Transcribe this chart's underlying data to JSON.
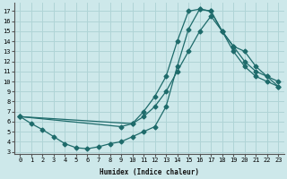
{
  "xlabel": "Humidex (Indice chaleur)",
  "bg_color": "#cde8ea",
  "grid_color": "#b0d4d6",
  "line_color": "#1e6b6b",
  "xlim": [
    -0.5,
    23.5
  ],
  "ylim": [
    2.8,
    17.8
  ],
  "xticks": [
    0,
    1,
    2,
    3,
    4,
    5,
    6,
    7,
    8,
    9,
    10,
    11,
    12,
    13,
    14,
    15,
    16,
    17,
    18,
    19,
    20,
    21,
    22,
    23
  ],
  "yticks": [
    3,
    4,
    5,
    6,
    7,
    8,
    9,
    10,
    11,
    12,
    13,
    14,
    15,
    16,
    17
  ],
  "line1_x": [
    0,
    1,
    2,
    3,
    4,
    5,
    6,
    7,
    8,
    9,
    10,
    11,
    12,
    13,
    14,
    15,
    16,
    17,
    18,
    19,
    20,
    21,
    22,
    23
  ],
  "line1_y": [
    6.5,
    5.8,
    5.2,
    4.5,
    3.8,
    3.4,
    3.3,
    3.5,
    3.8,
    4.0,
    4.5,
    5.0,
    5.5,
    7.5,
    11.5,
    15.2,
    17.2,
    17.0,
    15.0,
    13.0,
    11.5,
    10.5,
    10.0,
    9.5
  ],
  "line2_x": [
    0,
    10,
    11,
    12,
    13,
    14,
    15,
    16,
    17,
    18,
    19,
    20,
    21,
    22,
    23
  ],
  "line2_y": [
    6.5,
    5.8,
    7.0,
    8.5,
    10.5,
    14.0,
    17.0,
    17.2,
    17.0,
    15.0,
    13.5,
    13.0,
    11.5,
    10.5,
    10.0
  ],
  "line3_x": [
    0,
    9,
    10,
    11,
    12,
    13,
    14,
    15,
    16,
    17,
    18,
    19,
    20,
    21,
    22,
    23
  ],
  "line3_y": [
    6.5,
    5.5,
    5.8,
    6.5,
    7.5,
    9.0,
    11.0,
    13.0,
    15.0,
    16.5,
    15.0,
    13.5,
    12.0,
    11.0,
    10.5,
    9.5
  ]
}
